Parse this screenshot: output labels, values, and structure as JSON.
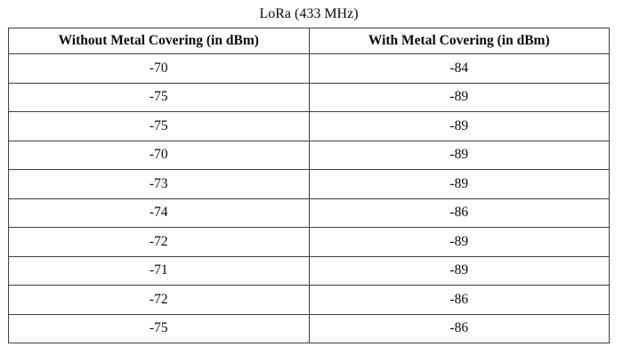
{
  "title": "LoRa (433 MHz)",
  "table": {
    "columns": [
      "Without Metal Covering (in dBm)",
      "With Metal Covering (in dBm)"
    ],
    "rows": [
      [
        "-70",
        "-84"
      ],
      [
        "-75",
        "-89"
      ],
      [
        "-75",
        "-89"
      ],
      [
        "-70",
        "-89"
      ],
      [
        "-73",
        "-89"
      ],
      [
        "-74",
        "-86"
      ],
      [
        "-72",
        "-89"
      ],
      [
        "-71",
        "-89"
      ],
      [
        "-72",
        "-86"
      ],
      [
        "-75",
        "-86"
      ]
    ]
  },
  "chart_data": {
    "type": "table",
    "title": "LoRa (433 MHz)",
    "columns": [
      "Without Metal Covering (in dBm)",
      "With Metal Covering (in dBm)"
    ],
    "series": [
      {
        "name": "Without Metal Covering (in dBm)",
        "values": [
          -70,
          -75,
          -75,
          -70,
          -73,
          -74,
          -72,
          -71,
          -72,
          -75
        ]
      },
      {
        "name": "With Metal Covering (in dBm)",
        "values": [
          -84,
          -89,
          -89,
          -89,
          -89,
          -86,
          -89,
          -89,
          -86,
          -86
        ]
      }
    ]
  },
  "colors": {
    "background": "#ffffff",
    "border": "#3e3e3e",
    "text": "#0a0a0a"
  }
}
